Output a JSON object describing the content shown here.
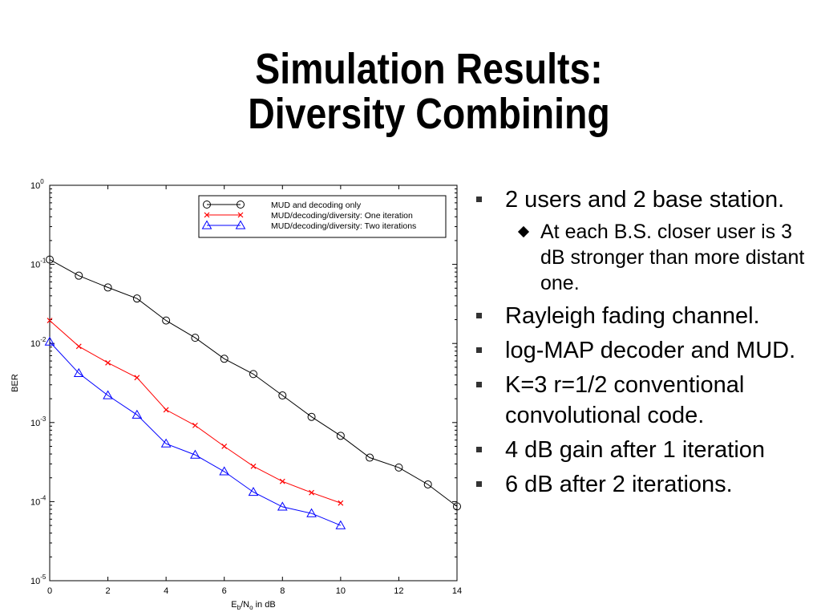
{
  "slide": {
    "title_line1": "Simulation Results:",
    "title_line2": "Diversity Combining"
  },
  "bullets": [
    "2 users and 2 base station.",
    "Rayleigh fading channel.",
    "log-MAP decoder and MUD.",
    "K=3 r=1/2 conventional convolutional code.",
    "4 dB gain after 1 iteration",
    "6 dB after 2 iterations."
  ],
  "sub_bullets": [
    "At each B.S. closer user is 3 dB stronger than more distant one."
  ],
  "chart_data": {
    "type": "line",
    "xlabel": "E_b/N_o in dB",
    "ylabel": "BER",
    "xlim": [
      0,
      14
    ],
    "ylim": [
      1e-05,
      1
    ],
    "yscale": "log",
    "grid": false,
    "legend_position": "top-right",
    "x_ticks": [
      0,
      2,
      4,
      6,
      8,
      10,
      12,
      14
    ],
    "y_ticks": [
      1,
      0.1,
      0.01,
      0.001,
      0.0001,
      1e-05
    ],
    "y_tick_exponents": [
      "0",
      "-1",
      "-2",
      "-3",
      "-4",
      "-5"
    ],
    "series": [
      {
        "name": "MUD and decoding only",
        "color": "#000000",
        "marker": "circle",
        "x": [
          0,
          1,
          2,
          3,
          4,
          5,
          6,
          7,
          8,
          9,
          10,
          11,
          12,
          13,
          14
        ],
        "y": [
          0.115,
          0.072,
          0.051,
          0.037,
          0.0195,
          0.0118,
          0.0064,
          0.0041,
          0.0022,
          0.00118,
          0.00068,
          0.00036,
          0.00027,
          0.000165,
          8.7e-05
        ]
      },
      {
        "name": "MUD/decoding/diversity: One iteration",
        "color": "#ff0000",
        "marker": "x",
        "x": [
          0,
          1,
          2,
          3,
          4,
          5,
          6,
          7,
          8,
          9,
          10
        ],
        "y": [
          0.0195,
          0.0092,
          0.0057,
          0.0037,
          0.00145,
          0.00092,
          0.0005,
          0.00028,
          0.00018,
          0.00013,
          9.6e-05
        ]
      },
      {
        "name": "MUD/decoding/diversity: Two iterations",
        "color": "#0000ff",
        "marker": "triangle",
        "x": [
          0,
          1,
          2,
          3,
          4,
          5,
          6,
          7,
          8,
          9,
          10
        ],
        "y": [
          0.0105,
          0.0042,
          0.0022,
          0.00125,
          0.00054,
          0.00039,
          0.00024,
          0.000132,
          8.6e-05,
          7.1e-05,
          5e-05
        ]
      }
    ]
  }
}
